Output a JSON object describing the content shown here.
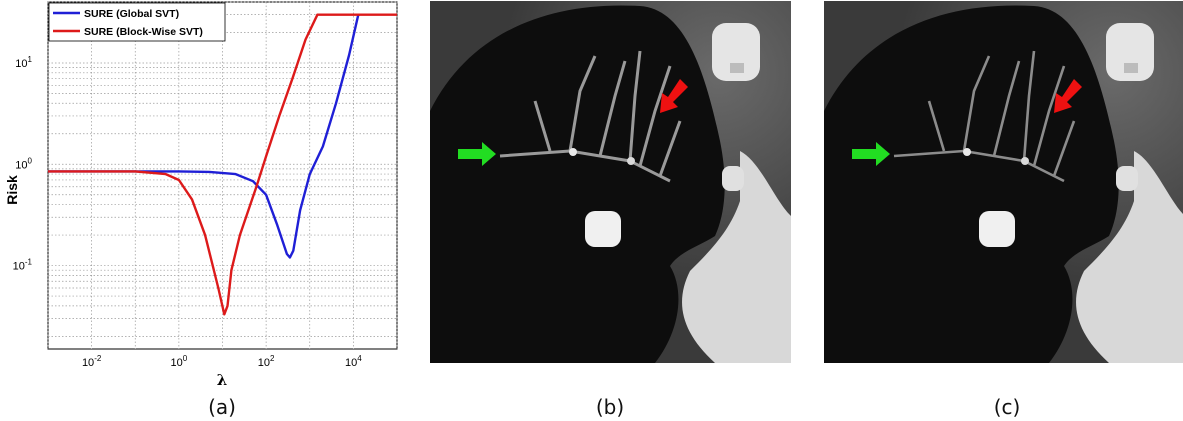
{
  "panel_labels": [
    "(a)",
    "(b)",
    "(c)"
  ],
  "chart_data": {
    "type": "line",
    "ylabel": "Risk",
    "xlabel": "λ",
    "xscale": "log",
    "yscale": "log",
    "xlim": [
      0.001,
      100000
    ],
    "ylim": [
      0.015,
      40
    ],
    "grid": true,
    "legend_position": "top-left",
    "x_ticks": [
      {
        "base": "10",
        "exp": "-2",
        "value": 0.01
      },
      {
        "base": "10",
        "exp": "0",
        "value": 1
      },
      {
        "base": "10",
        "exp": "2",
        "value": 100
      },
      {
        "base": "10",
        "exp": "4",
        "value": 10000
      }
    ],
    "y_ticks": [
      {
        "base": "10",
        "exp": "-1",
        "value": 0.1
      },
      {
        "base": "10",
        "exp": "0",
        "value": 1
      },
      {
        "base": "10",
        "exp": "1",
        "value": 10
      }
    ],
    "series": [
      {
        "name": "SURE (Global SVT)",
        "color": "#1f1fd6",
        "points": [
          [
            0.001,
            0.85
          ],
          [
            1,
            0.85
          ],
          [
            5,
            0.84
          ],
          [
            20,
            0.8
          ],
          [
            50,
            0.68
          ],
          [
            100,
            0.5
          ],
          [
            180,
            0.25
          ],
          [
            300,
            0.13
          ],
          [
            350,
            0.12
          ],
          [
            420,
            0.14
          ],
          [
            600,
            0.35
          ],
          [
            1000,
            0.8
          ],
          [
            2000,
            1.5
          ],
          [
            4000,
            4
          ],
          [
            8000,
            12
          ],
          [
            13000,
            30
          ],
          [
            14000,
            30
          ]
        ]
      },
      {
        "name": "SURE (Block-Wise SVT)",
        "color": "#dd1a1a",
        "points": [
          [
            0.001,
            0.85
          ],
          [
            0.1,
            0.85
          ],
          [
            0.5,
            0.8
          ],
          [
            1,
            0.7
          ],
          [
            2,
            0.45
          ],
          [
            4,
            0.2
          ],
          [
            8,
            0.06
          ],
          [
            11,
            0.033
          ],
          [
            13,
            0.04
          ],
          [
            16,
            0.09
          ],
          [
            25,
            0.2
          ],
          [
            60,
            0.6
          ],
          [
            100,
            1.2
          ],
          [
            200,
            3
          ],
          [
            400,
            7
          ],
          [
            800,
            17
          ],
          [
            1500,
            30
          ],
          [
            100000,
            30
          ]
        ]
      }
    ]
  },
  "images": [
    {
      "label_index": 1,
      "green_arrow": "right-arrow-icon",
      "red_arrow": "down-left-arrow-icon"
    },
    {
      "label_index": 2,
      "green_arrow": "right-arrow-icon",
      "red_arrow": "down-left-arrow-icon"
    }
  ]
}
